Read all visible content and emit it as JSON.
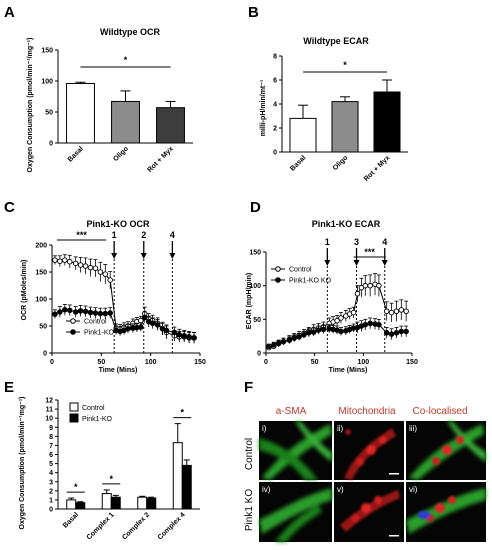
{
  "panels": {
    "A": "A",
    "B": "B",
    "C": "C",
    "D": "D",
    "E": "E",
    "F": "F"
  },
  "chart_data": [
    {
      "id": "A",
      "type": "bar",
      "title": "Wildtype OCR",
      "ylabel": "Oxygen Consumption (pmol/min⁻¹/mg⁻¹)",
      "categories": [
        "Basal",
        "Oligo",
        "Rot + Myx"
      ],
      "values": [
        96,
        67,
        57
      ],
      "errors": [
        2,
        17,
        10
      ],
      "fills": [
        "#ffffff",
        "#8c8c8c",
        "#3d3d3d"
      ],
      "ylim": [
        0,
        150
      ],
      "yticks": [
        0,
        50,
        100,
        150
      ],
      "annotation": "*"
    },
    {
      "id": "B",
      "type": "bar",
      "title": "Wildtype ECAR",
      "ylabel": "milli-pH/min/mt⁻¹",
      "categories": [
        "Basal",
        "Oligo",
        "Rot + Myx"
      ],
      "values": [
        2.8,
        4.2,
        5.0
      ],
      "errors": [
        1.1,
        0.4,
        1.0
      ],
      "fills": [
        "#ffffff",
        "#8c8c8c",
        "#000000"
      ],
      "ylim": [
        0,
        8
      ],
      "yticks": [
        0,
        2,
        4,
        6,
        8
      ],
      "annotation": "*"
    },
    {
      "id": "C",
      "type": "line",
      "title": "Pink1-KO OCR",
      "xlabel": "Time (Mins)",
      "ylabel": "OCR (pMoles/min)",
      "xlim": [
        0,
        150
      ],
      "ylim": [
        0,
        200
      ],
      "xticks": [
        0,
        50,
        100,
        150
      ],
      "yticks": [
        0,
        50,
        100,
        150,
        200
      ],
      "injections": [
        {
          "label": "1",
          "x": 63
        },
        {
          "label": "2",
          "x": 93
        },
        {
          "label": "4",
          "x": 122
        }
      ],
      "annotation": "***",
      "series": [
        {
          "name": "Control",
          "marker": "open",
          "x": [
            3,
            8,
            13,
            18,
            24,
            29,
            34,
            39,
            44,
            49,
            54,
            59,
            65,
            69,
            73,
            77,
            82,
            86,
            90,
            94,
            98,
            102,
            107,
            112,
            116,
            124,
            129,
            134,
            139,
            144
          ],
          "y": [
            172,
            170,
            172,
            169,
            166,
            163,
            161,
            158,
            157,
            150,
            146,
            135,
            46,
            45,
            48,
            50,
            55,
            58,
            60,
            73,
            63,
            60,
            55,
            45,
            38,
            32,
            30,
            30,
            28,
            28
          ],
          "err": [
            8,
            10,
            10,
            12,
            12,
            14,
            15,
            16,
            16,
            18,
            18,
            16,
            8,
            8,
            8,
            8,
            8,
            8,
            8,
            12,
            10,
            10,
            10,
            12,
            12,
            10,
            10,
            10,
            10,
            10
          ]
        },
        {
          "name": "Pink1-KO",
          "marker": "filled",
          "x": [
            3,
            8,
            13,
            18,
            24,
            29,
            34,
            39,
            44,
            49,
            54,
            59,
            65,
            69,
            73,
            77,
            82,
            86,
            90,
            94,
            98,
            102,
            107,
            112,
            116,
            124,
            129,
            134,
            139,
            144
          ],
          "y": [
            72,
            76,
            80,
            79,
            76,
            78,
            77,
            75,
            74,
            73,
            73,
            74,
            42,
            40,
            42,
            45,
            46,
            47,
            48,
            66,
            58,
            55,
            52,
            45,
            42,
            38,
            34,
            32,
            30,
            28
          ],
          "err": [
            8,
            10,
            10,
            10,
            10,
            10,
            10,
            10,
            10,
            10,
            10,
            10,
            8,
            8,
            8,
            8,
            8,
            8,
            8,
            10,
            10,
            10,
            10,
            10,
            10,
            10,
            10,
            10,
            10,
            10
          ]
        }
      ]
    },
    {
      "id": "D",
      "type": "line",
      "title": "Pink1-KO ECAR",
      "xlabel": "Time (Mins)",
      "ylabel": "ECAR (mpH/min)",
      "xlim": [
        0,
        150
      ],
      "ylim": [
        0,
        150
      ],
      "xticks": [
        0,
        50,
        100,
        150
      ],
      "yticks": [
        0,
        50,
        100,
        150
      ],
      "injections": [
        {
          "label": "1",
          "x": 63
        },
        {
          "label": "3",
          "x": 93
        },
        {
          "label": "4",
          "x": 122
        }
      ],
      "annotation": "***",
      "series": [
        {
          "name": "Control",
          "marker": "open",
          "x": [
            3,
            8,
            13,
            18,
            24,
            29,
            34,
            39,
            44,
            49,
            54,
            59,
            65,
            69,
            73,
            77,
            82,
            86,
            90,
            94,
            98,
            102,
            107,
            112,
            116,
            124,
            129,
            134,
            139,
            144
          ],
          "y": [
            8,
            10,
            14,
            17,
            20,
            23,
            26,
            29,
            32,
            35,
            37,
            39,
            44,
            46,
            48,
            52,
            55,
            58,
            60,
            88,
            97,
            100,
            100,
            102,
            100,
            62,
            60,
            62,
            64,
            62
          ],
          "err": [
            3,
            4,
            5,
            5,
            6,
            6,
            6,
            6,
            6,
            7,
            7,
            7,
            8,
            8,
            8,
            8,
            8,
            8,
            8,
            12,
            14,
            15,
            16,
            16,
            16,
            14,
            14,
            15,
            15,
            15
          ]
        },
        {
          "name": "Pink1-KO KO",
          "marker": "filled",
          "x": [
            3,
            8,
            13,
            18,
            24,
            29,
            34,
            39,
            44,
            49,
            54,
            59,
            65,
            69,
            73,
            77,
            82,
            86,
            90,
            94,
            98,
            102,
            107,
            112,
            116,
            124,
            129,
            134,
            139,
            144
          ],
          "y": [
            10,
            12,
            15,
            17,
            19,
            22,
            24,
            27,
            30,
            31,
            34,
            35,
            36,
            35,
            34,
            32,
            33,
            35,
            37,
            38,
            40,
            42,
            44,
            43,
            42,
            30,
            28,
            30,
            32,
            32
          ],
          "err": [
            3,
            4,
            4,
            5,
            5,
            5,
            5,
            5,
            6,
            6,
            6,
            6,
            6,
            6,
            6,
            6,
            6,
            6,
            6,
            8,
            8,
            8,
            8,
            8,
            8,
            8,
            8,
            8,
            8,
            8
          ]
        }
      ]
    },
    {
      "id": "E",
      "type": "bar",
      "ylabel": "Oxygen Consumption (pmol/min⁻¹mg⁻¹)",
      "categories": [
        "Basal",
        "Complex 1",
        "Complex 2",
        "Complex 4"
      ],
      "ylim": [
        0,
        12
      ],
      "yticks": [
        0,
        1,
        2,
        3,
        4,
        5,
        6,
        7,
        8,
        9,
        10,
        11,
        12
      ],
      "significance": [
        "*",
        "*",
        "",
        "*"
      ],
      "series": [
        {
          "name": "Control",
          "fill": "#ffffff",
          "values": [
            1.0,
            1.7,
            1.3,
            7.3
          ],
          "err": [
            0.2,
            0.4,
            0.1,
            2.1
          ]
        },
        {
          "name": "Pink1-KO",
          "fill": "#000000",
          "values": [
            0.7,
            1.3,
            1.2,
            4.8
          ],
          "err": [
            0.1,
            0.2,
            0.1,
            0.6
          ]
        }
      ]
    }
  ],
  "micrographs": {
    "column_headers": [
      "a-SMA",
      "Mitochondria",
      "Co-localised"
    ],
    "row_labels": [
      "Control",
      "Pink1 KO"
    ],
    "tags": [
      [
        "i)",
        "ii)",
        "iii)"
      ],
      [
        "iv)",
        "v)",
        "vi)"
      ]
    ]
  }
}
